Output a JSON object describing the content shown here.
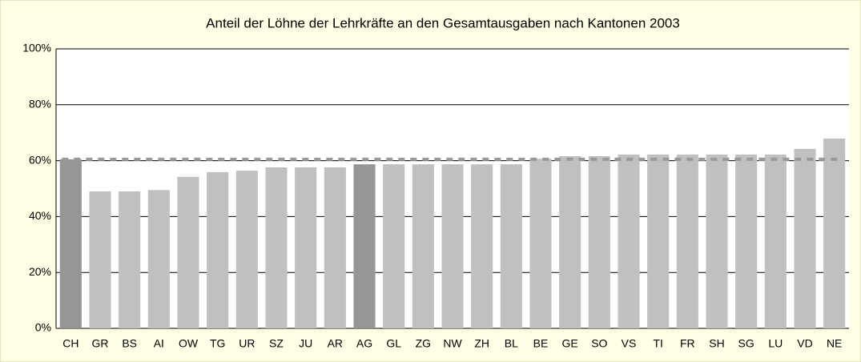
{
  "chart_data": {
    "type": "bar",
    "title": "Anteil der Löhne der Lehrkräfte an den Gesamtausgaben nach Kantonen 2003",
    "categories": [
      "CH",
      "GR",
      "BS",
      "AI",
      "OW",
      "TG",
      "UR",
      "SZ",
      "JU",
      "AR",
      "AG",
      "GL",
      "ZG",
      "NW",
      "ZH",
      "BL",
      "BE",
      "GE",
      "SO",
      "VS",
      "TI",
      "FR",
      "SH",
      "SG",
      "LU",
      "VD",
      "NE"
    ],
    "values": [
      60.5,
      49,
      49,
      49.5,
      54.2,
      55.9,
      56.4,
      57.6,
      57.6,
      57.6,
      58.7,
      58.7,
      58.7,
      58.7,
      58.7,
      58.7,
      60.7,
      61.6,
      61.6,
      62.2,
      62.2,
      62.2,
      62.2,
      62.2,
      62.2,
      64.2,
      67.9
    ],
    "colors": [
      "#969696",
      "#c0c0c0",
      "#c0c0c0",
      "#c0c0c0",
      "#c0c0c0",
      "#c0c0c0",
      "#c0c0c0",
      "#c0c0c0",
      "#c0c0c0",
      "#c0c0c0",
      "#969696",
      "#c0c0c0",
      "#c0c0c0",
      "#c0c0c0",
      "#c0c0c0",
      "#c0c0c0",
      "#c0c0c0",
      "#c0c0c0",
      "#c0c0c0",
      "#c0c0c0",
      "#c0c0c0",
      "#c0c0c0",
      "#c0c0c0",
      "#c0c0c0",
      "#c0c0c0",
      "#c0c0c0",
      "#c0c0c0"
    ],
    "reference_line": {
      "value": 60.5,
      "color": "#999999"
    },
    "ylim": [
      0,
      100
    ],
    "yticks": [
      {
        "value": 0,
        "label": "0%"
      },
      {
        "value": 20,
        "label": "20%"
      },
      {
        "value": 40,
        "label": "40%"
      },
      {
        "value": 60,
        "label": "60%"
      },
      {
        "value": 80,
        "label": "80%"
      },
      {
        "value": 100,
        "label": "100%"
      }
    ],
    "grid": true
  }
}
